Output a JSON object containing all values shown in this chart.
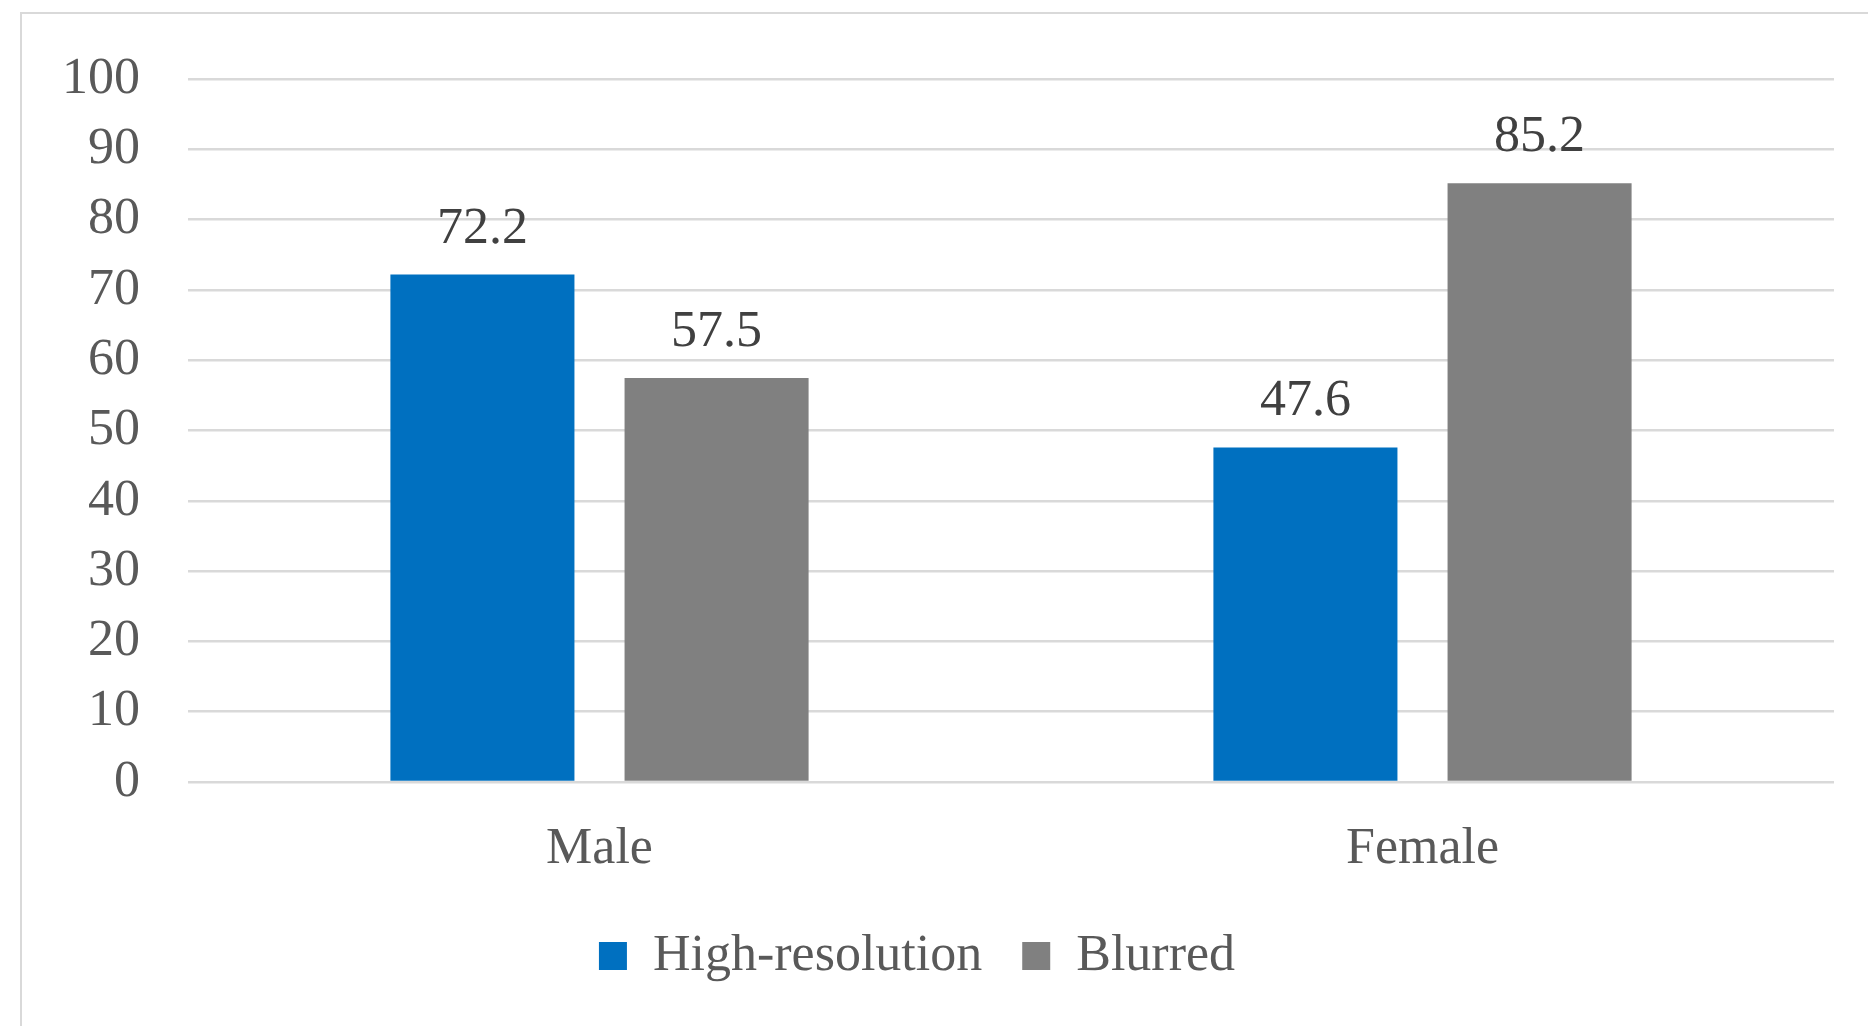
{
  "chart_data": {
    "type": "bar",
    "categories": [
      "Male",
      "Female"
    ],
    "series": [
      {
        "name": "High-resolution",
        "color": "#0070c0",
        "values": [
          72.2,
          47.6
        ]
      },
      {
        "name": "Blurred",
        "color": "#808080",
        "values": [
          57.5,
          85.2
        ]
      }
    ],
    "ylim": [
      0,
      100
    ],
    "yticks": [
      0,
      10,
      20,
      30,
      40,
      50,
      60,
      70,
      80,
      90,
      100
    ],
    "grid": "y",
    "legend": "bottom",
    "data_labels": true
  }
}
